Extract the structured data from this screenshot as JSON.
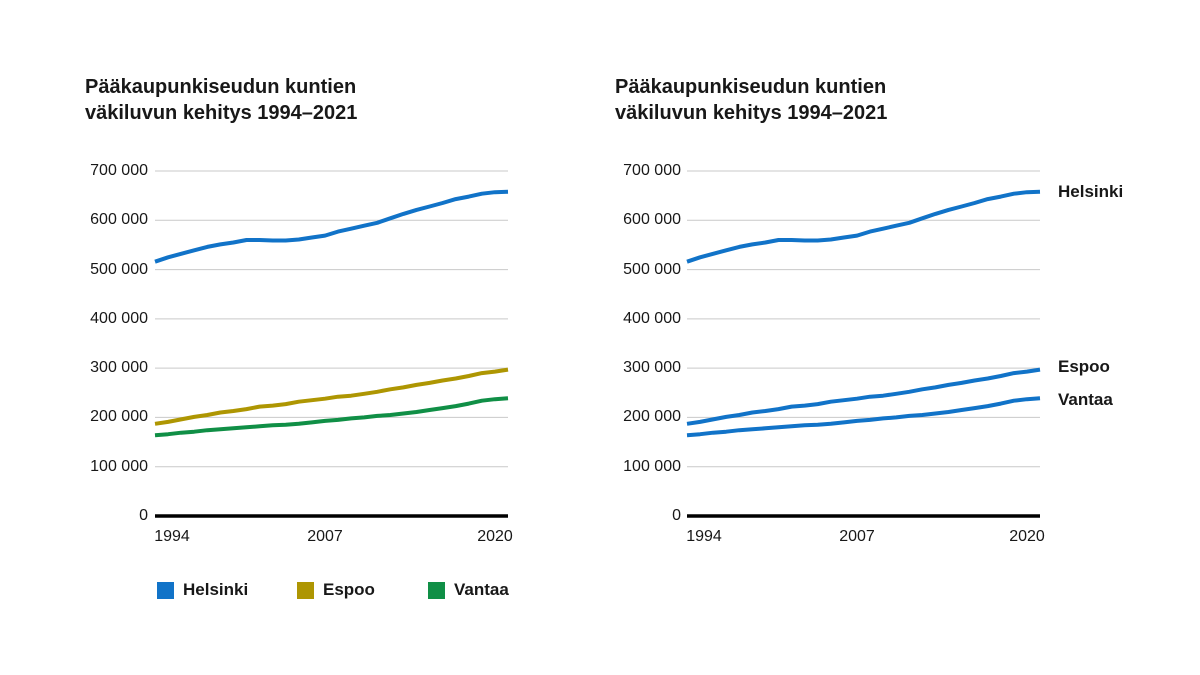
{
  "colors": {
    "background": "#ffffff",
    "text": "#181818",
    "grid": "#c9c9c9",
    "axis": "#000000",
    "helsinki_blue": "#1173c8",
    "espoo_gold": "#ae9602",
    "vantaa_green": "#108f46"
  },
  "chart_data": [
    {
      "type": "line",
      "title": "Pääkaupunkiseudun kuntien väkiluvun kehitys 1994–2021",
      "title_lines": [
        "Pääkaupunkiseudun kuntien",
        "väkiluvun kehitys 1994–2021"
      ],
      "x": [
        1994,
        1995,
        1996,
        1997,
        1998,
        1999,
        2000,
        2001,
        2002,
        2003,
        2004,
        2005,
        2006,
        2007,
        2008,
        2009,
        2010,
        2011,
        2012,
        2013,
        2014,
        2015,
        2016,
        2017,
        2018,
        2019,
        2020,
        2021
      ],
      "series": [
        {
          "name": "Helsinki",
          "color": "#1173c8",
          "values": [
            516000,
            525000,
            532000,
            539000,
            546000,
            551000,
            555000,
            560000,
            560000,
            559000,
            559000,
            561000,
            565000,
            569000,
            577000,
            583000,
            589000,
            595000,
            604000,
            613000,
            621000,
            628000,
            635000,
            643000,
            648000,
            654000,
            657000,
            658000
          ]
        },
        {
          "name": "Espoo",
          "color": "#ae9602",
          "values": [
            187000,
            191000,
            196000,
            201000,
            205000,
            210000,
            213000,
            217000,
            222000,
            224000,
            227000,
            232000,
            235000,
            238000,
            242000,
            244000,
            248000,
            252000,
            257000,
            261000,
            266000,
            270000,
            275000,
            279000,
            284000,
            290000,
            293000,
            297000
          ]
        },
        {
          "name": "Vantaa",
          "color": "#108f46",
          "values": [
            164000,
            166000,
            169000,
            171000,
            174000,
            176000,
            178000,
            180000,
            182000,
            184000,
            185000,
            187000,
            190000,
            193000,
            195000,
            198000,
            200000,
            203000,
            205000,
            208000,
            211000,
            215000,
            219000,
            223000,
            228000,
            234000,
            237000,
            239000
          ]
        }
      ],
      "ylim": [
        0,
        700000
      ],
      "yticks": [
        "700 000",
        "600 000",
        "500 000",
        "400 000",
        "300 000",
        "200 000",
        "100 000",
        "0"
      ],
      "xticks": [
        "1994",
        "2007",
        "2020"
      ],
      "grid": true,
      "legend_position": "bottom",
      "legend": [
        "Helsinki",
        "Espoo",
        "Vantaa"
      ]
    },
    {
      "type": "line",
      "title": "Pääkaupunkiseudun kuntien väkiluvun kehitys 1994–2021",
      "title_lines": [
        "Pääkaupunkiseudun kuntien",
        "väkiluvun kehitys 1994–2021"
      ],
      "x": [
        1994,
        1995,
        1996,
        1997,
        1998,
        1999,
        2000,
        2001,
        2002,
        2003,
        2004,
        2005,
        2006,
        2007,
        2008,
        2009,
        2010,
        2011,
        2012,
        2013,
        2014,
        2015,
        2016,
        2017,
        2018,
        2019,
        2020,
        2021
      ],
      "series": [
        {
          "name": "Helsinki",
          "color": "#1173c8",
          "values": [
            516000,
            525000,
            532000,
            539000,
            546000,
            551000,
            555000,
            560000,
            560000,
            559000,
            559000,
            561000,
            565000,
            569000,
            577000,
            583000,
            589000,
            595000,
            604000,
            613000,
            621000,
            628000,
            635000,
            643000,
            648000,
            654000,
            657000,
            658000
          ]
        },
        {
          "name": "Espoo",
          "color": "#1173c8",
          "values": [
            187000,
            191000,
            196000,
            201000,
            205000,
            210000,
            213000,
            217000,
            222000,
            224000,
            227000,
            232000,
            235000,
            238000,
            242000,
            244000,
            248000,
            252000,
            257000,
            261000,
            266000,
            270000,
            275000,
            279000,
            284000,
            290000,
            293000,
            297000
          ]
        },
        {
          "name": "Vantaa",
          "color": "#1173c8",
          "values": [
            164000,
            166000,
            169000,
            171000,
            174000,
            176000,
            178000,
            180000,
            182000,
            184000,
            185000,
            187000,
            190000,
            193000,
            195000,
            198000,
            200000,
            203000,
            205000,
            208000,
            211000,
            215000,
            219000,
            223000,
            228000,
            234000,
            237000,
            239000
          ]
        }
      ],
      "ylim": [
        0,
        700000
      ],
      "yticks": [
        "700 000",
        "600 000",
        "500 000",
        "400 000",
        "300 000",
        "200 000",
        "100 000",
        "0"
      ],
      "xticks": [
        "1994",
        "2007",
        "2020"
      ],
      "grid": true,
      "legend_position": "none",
      "direct_labels": [
        "Helsinki",
        "Espoo",
        "Vantaa"
      ]
    }
  ]
}
